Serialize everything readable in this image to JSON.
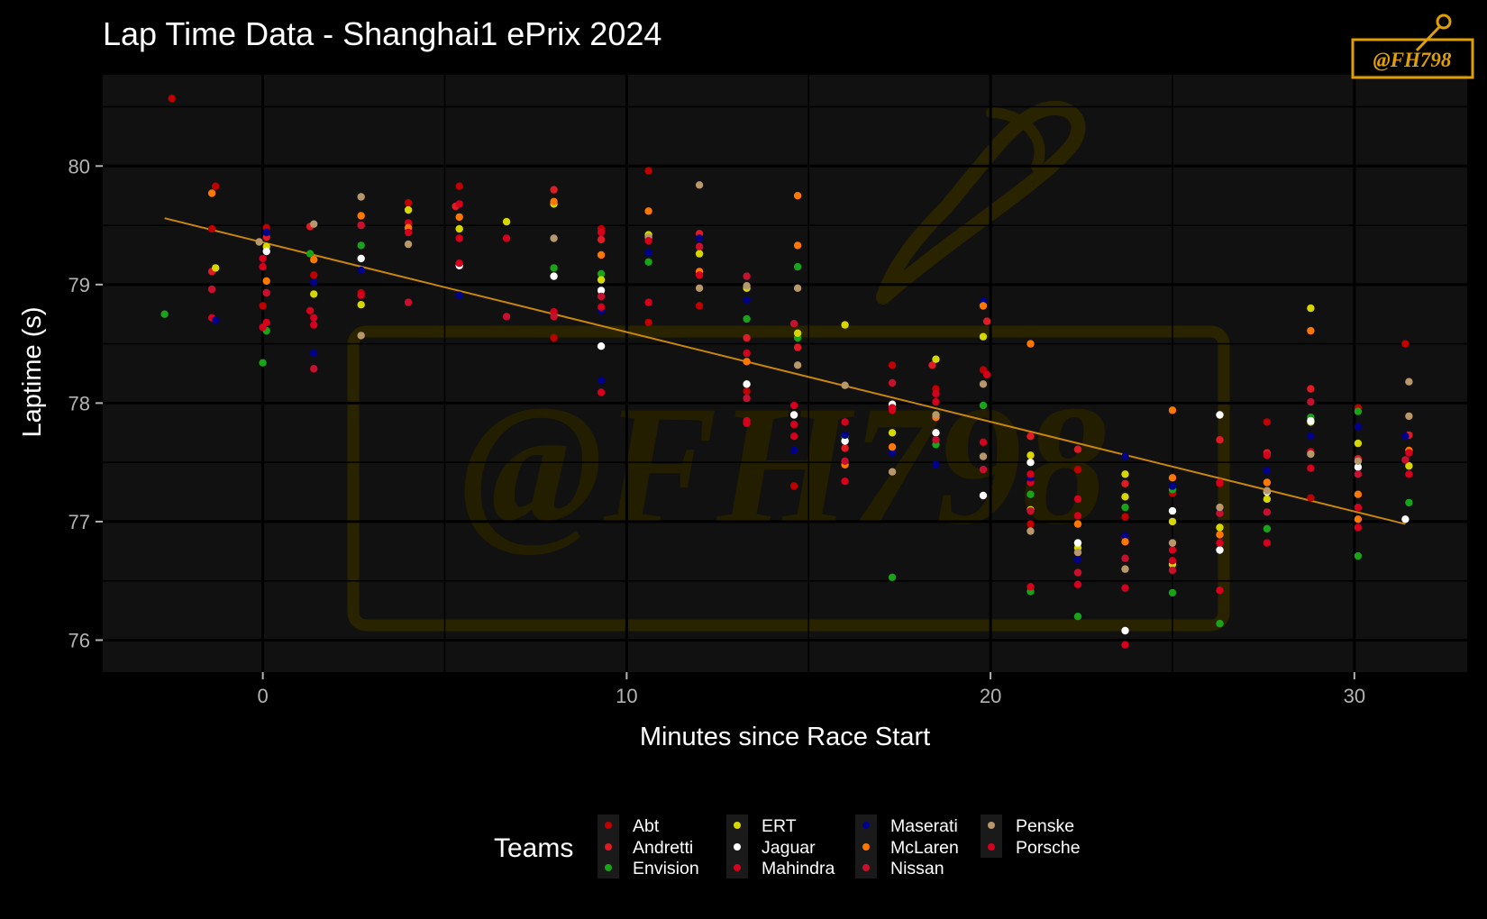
{
  "title": "Lap Time Data - Shanghai1 ePrix 2024",
  "watermark_text": "@FH798",
  "logo_text": "@FH798",
  "chart_data": {
    "type": "scatter",
    "title": "Lap Time Data - Shanghai1 ePrix 2024",
    "xlabel": "Minutes since Race Start",
    "ylabel": "Laptime (s)",
    "xlim": [
      -4.4,
      33.1
    ],
    "ylim": [
      75.73,
      80.77
    ],
    "xticks": [
      0,
      10,
      20,
      30
    ],
    "yticks": [
      76,
      77,
      78,
      79,
      80
    ],
    "grid": true,
    "legend_title": "Teams",
    "legend_position": "bottom",
    "trend_line": {
      "x": [
        -2.7,
        31.4
      ],
      "y": [
        79.56,
        76.98
      ],
      "color": "#c8860a"
    },
    "colors": {
      "Abt": "#c00000",
      "Andretti": "#e01b24",
      "Envision": "#19a319",
      "ERT": "#d7d700",
      "Jaguar": "#ffffff",
      "Mahindra": "#d6001c",
      "Maserati": "#00008b",
      "McLaren": "#ff7700",
      "Nissan": "#c8102e",
      "Penske": "#b8976a",
      "Porsche": "#d5001c"
    },
    "series": [
      {
        "name": "Abt",
        "points": [
          [
            -2.5,
            80.57
          ],
          [
            -1.4,
            79.47
          ],
          [
            -1.3,
            79.83
          ],
          [
            0.0,
            78.82
          ],
          [
            0.1,
            79.48
          ],
          [
            1.4,
            79.08
          ],
          [
            2.7,
            78.93
          ],
          [
            4.0,
            79.69
          ],
          [
            5.4,
            79.83
          ],
          [
            8.0,
            78.55
          ],
          [
            9.3,
            79.47
          ],
          [
            10.6,
            79.96
          ],
          [
            10.6,
            78.68
          ],
          [
            12.0,
            78.82
          ],
          [
            13.3,
            78.1
          ],
          [
            14.6,
            77.3
          ],
          [
            17.3,
            78.32
          ],
          [
            18.5,
            78.12
          ],
          [
            19.8,
            78.28
          ],
          [
            21.1,
            76.98
          ],
          [
            22.4,
            77.44
          ],
          [
            23.7,
            77.04
          ],
          [
            25.0,
            77.24
          ],
          [
            26.3,
            77.32
          ],
          [
            27.6,
            77.84
          ],
          [
            28.8,
            77.2
          ],
          [
            30.1,
            77.96
          ],
          [
            31.4,
            78.5
          ]
        ]
      },
      {
        "name": "Andretti",
        "points": [
          [
            -1.4,
            79.11
          ],
          [
            0.1,
            79.4
          ],
          [
            1.3,
            79.49
          ],
          [
            2.7,
            79.5
          ],
          [
            5.3,
            79.66
          ],
          [
            8.0,
            79.8
          ],
          [
            9.3,
            79.38
          ],
          [
            12.0,
            79.43
          ],
          [
            13.3,
            78.55
          ],
          [
            14.7,
            78.47
          ],
          [
            16.0,
            77.62
          ],
          [
            18.4,
            78.32
          ],
          [
            19.9,
            78.69
          ],
          [
            21.1,
            77.72
          ],
          [
            22.4,
            77.61
          ],
          [
            23.7,
            77.32
          ],
          [
            25.0,
            77.0
          ],
          [
            26.3,
            77.69
          ],
          [
            27.6,
            77.58
          ],
          [
            28.8,
            78.12
          ],
          [
            30.1,
            77.53
          ],
          [
            31.5,
            77.73
          ]
        ]
      },
      {
        "name": "Envision",
        "points": [
          [
            -2.7,
            78.75
          ],
          [
            0.0,
            78.34
          ],
          [
            0.1,
            78.61
          ],
          [
            1.3,
            79.26
          ],
          [
            2.7,
            79.33
          ],
          [
            8.0,
            79.14
          ],
          [
            9.3,
            79.09
          ],
          [
            10.6,
            79.19
          ],
          [
            13.3,
            78.71
          ],
          [
            14.7,
            79.15
          ],
          [
            14.7,
            78.55
          ],
          [
            16.0,
            77.72
          ],
          [
            17.3,
            76.53
          ],
          [
            18.5,
            77.65
          ],
          [
            19.8,
            77.98
          ],
          [
            21.1,
            77.23
          ],
          [
            21.1,
            76.41
          ],
          [
            22.4,
            76.2
          ],
          [
            23.7,
            77.12
          ],
          [
            25.0,
            77.27
          ],
          [
            25.0,
            76.4
          ],
          [
            26.3,
            76.14
          ],
          [
            27.6,
            76.94
          ],
          [
            28.8,
            77.88
          ],
          [
            30.1,
            77.93
          ],
          [
            30.1,
            76.71
          ],
          [
            31.5,
            77.16
          ]
        ]
      },
      {
        "name": "ERT",
        "points": [
          [
            -1.3,
            79.14
          ],
          [
            0.1,
            79.32
          ],
          [
            1.4,
            78.92
          ],
          [
            2.7,
            78.83
          ],
          [
            4.0,
            79.63
          ],
          [
            5.4,
            79.47
          ],
          [
            6.7,
            79.53
          ],
          [
            8.0,
            79.68
          ],
          [
            9.3,
            79.04
          ],
          [
            10.6,
            79.42
          ],
          [
            12.0,
            79.26
          ],
          [
            13.3,
            78.97
          ],
          [
            14.7,
            78.59
          ],
          [
            16.0,
            78.66
          ],
          [
            17.3,
            77.75
          ],
          [
            18.5,
            78.37
          ],
          [
            19.8,
            78.56
          ],
          [
            21.1,
            77.56
          ],
          [
            21.1,
            77.1
          ],
          [
            22.4,
            76.78
          ],
          [
            23.7,
            77.4
          ],
          [
            23.7,
            77.21
          ],
          [
            25.0,
            77.0
          ],
          [
            25.0,
            76.64
          ],
          [
            26.3,
            76.95
          ],
          [
            27.6,
            77.19
          ],
          [
            28.8,
            78.8
          ],
          [
            28.8,
            77.84
          ],
          [
            30.1,
            77.66
          ],
          [
            31.5,
            77.47
          ]
        ]
      },
      {
        "name": "Jaguar",
        "points": [
          [
            0.1,
            79.28
          ],
          [
            2.7,
            79.22
          ],
          [
            5.4,
            79.16
          ],
          [
            8.0,
            79.07
          ],
          [
            9.3,
            78.48
          ],
          [
            9.3,
            78.95
          ],
          [
            13.3,
            78.16
          ],
          [
            14.6,
            77.9
          ],
          [
            16.0,
            77.68
          ],
          [
            17.3,
            77.99
          ],
          [
            18.5,
            77.75
          ],
          [
            19.8,
            77.22
          ],
          [
            21.1,
            77.5
          ],
          [
            22.4,
            76.82
          ],
          [
            23.7,
            76.08
          ],
          [
            25.0,
            77.09
          ],
          [
            26.3,
            77.9
          ],
          [
            26.3,
            76.76
          ],
          [
            27.6,
            77.25
          ],
          [
            28.8,
            77.85
          ],
          [
            30.1,
            77.46
          ],
          [
            31.4,
            77.02
          ]
        ]
      },
      {
        "name": "Mahindra",
        "points": [
          [
            -1.4,
            78.72
          ],
          [
            0.1,
            78.68
          ],
          [
            0.0,
            79.15
          ],
          [
            1.3,
            78.78
          ],
          [
            1.4,
            78.66
          ],
          [
            2.7,
            78.91
          ],
          [
            4.0,
            79.52
          ],
          [
            5.4,
            79.39
          ],
          [
            6.7,
            79.39
          ],
          [
            8.0,
            78.77
          ],
          [
            9.3,
            78.09
          ],
          [
            10.6,
            78.85
          ],
          [
            12.0,
            79.11
          ],
          [
            13.3,
            77.85
          ],
          [
            14.6,
            77.98
          ],
          [
            14.6,
            77.72
          ],
          [
            16.0,
            77.34
          ],
          [
            17.3,
            77.96
          ],
          [
            18.5,
            78.08
          ],
          [
            19.9,
            78.24
          ],
          [
            21.1,
            77.33
          ],
          [
            21.1,
            76.45
          ],
          [
            22.4,
            77.19
          ],
          [
            22.4,
            76.47
          ],
          [
            23.7,
            76.44
          ],
          [
            23.7,
            76.87
          ],
          [
            25.0,
            76.76
          ],
          [
            26.3,
            76.42
          ],
          [
            26.3,
            76.82
          ],
          [
            27.6,
            76.82
          ],
          [
            28.8,
            77.59
          ],
          [
            30.1,
            77.12
          ],
          [
            31.5,
            77.4
          ]
        ]
      },
      {
        "name": "Maserati",
        "points": [
          [
            -1.3,
            78.7
          ],
          [
            0.1,
            79.44
          ],
          [
            1.4,
            79.02
          ],
          [
            1.4,
            78.42
          ],
          [
            2.7,
            79.12
          ],
          [
            5.4,
            78.91
          ],
          [
            9.3,
            78.19
          ],
          [
            9.3,
            78.78
          ],
          [
            10.6,
            79.27
          ],
          [
            12.0,
            79.39
          ],
          [
            13.3,
            78.87
          ],
          [
            14.6,
            77.6
          ],
          [
            16.0,
            77.73
          ],
          [
            17.3,
            77.58
          ],
          [
            18.5,
            77.48
          ],
          [
            19.8,
            78.86
          ],
          [
            21.1,
            77.37
          ],
          [
            22.4,
            76.68
          ],
          [
            23.7,
            77.55
          ],
          [
            23.7,
            76.88
          ],
          [
            25.0,
            77.3
          ],
          [
            26.3,
            77.1
          ],
          [
            27.6,
            77.43
          ],
          [
            28.8,
            77.72
          ],
          [
            30.1,
            77.8
          ],
          [
            31.4,
            77.72
          ]
        ]
      },
      {
        "name": "McLaren",
        "points": [
          [
            -1.4,
            79.77
          ],
          [
            0.1,
            79.03
          ],
          [
            1.4,
            79.21
          ],
          [
            2.7,
            79.58
          ],
          [
            4.0,
            79.48
          ],
          [
            5.4,
            79.57
          ],
          [
            8.0,
            79.7
          ],
          [
            9.3,
            79.25
          ],
          [
            10.6,
            79.62
          ],
          [
            12.0,
            79.11
          ],
          [
            13.3,
            78.35
          ],
          [
            14.7,
            79.75
          ],
          [
            14.7,
            79.33
          ],
          [
            16.0,
            77.48
          ],
          [
            17.3,
            77.63
          ],
          [
            18.5,
            77.88
          ],
          [
            19.8,
            78.82
          ],
          [
            21.1,
            78.5
          ],
          [
            22.4,
            76.98
          ],
          [
            23.7,
            76.83
          ],
          [
            25.0,
            77.94
          ],
          [
            25.0,
            77.37
          ],
          [
            26.3,
            76.89
          ],
          [
            27.6,
            77.33
          ],
          [
            28.8,
            78.61
          ],
          [
            30.1,
            77.23
          ],
          [
            30.1,
            77.02
          ],
          [
            31.5,
            77.6
          ]
        ]
      },
      {
        "name": "Nissan",
        "points": [
          [
            -1.4,
            78.96
          ],
          [
            0.1,
            78.93
          ],
          [
            1.4,
            78.29
          ],
          [
            2.7,
            79.5
          ],
          [
            4.0,
            78.85
          ],
          [
            6.7,
            78.73
          ],
          [
            8.0,
            78.73
          ],
          [
            9.3,
            78.9
          ],
          [
            12.0,
            79.32
          ],
          [
            13.3,
            79.07
          ],
          [
            13.3,
            78.04
          ],
          [
            14.6,
            78.67
          ],
          [
            16.0,
            77.51
          ],
          [
            17.3,
            78.17
          ],
          [
            18.5,
            77.69
          ],
          [
            19.8,
            77.44
          ],
          [
            21.1,
            77.09
          ],
          [
            22.4,
            76.57
          ],
          [
            23.7,
            76.69
          ],
          [
            25.0,
            76.59
          ],
          [
            26.3,
            77.07
          ],
          [
            27.6,
            77.08
          ],
          [
            28.8,
            78.01
          ],
          [
            30.1,
            77.4
          ],
          [
            31.4,
            77.52
          ]
        ]
      },
      {
        "name": "Penske",
        "points": [
          [
            -0.1,
            79.36
          ],
          [
            1.4,
            79.51
          ],
          [
            2.7,
            79.74
          ],
          [
            2.7,
            78.57
          ],
          [
            4.0,
            79.34
          ],
          [
            8.0,
            79.39
          ],
          [
            10.6,
            79.4
          ],
          [
            12.0,
            79.84
          ],
          [
            12.0,
            78.97
          ],
          [
            13.3,
            78.99
          ],
          [
            14.7,
            78.97
          ],
          [
            14.7,
            78.32
          ],
          [
            16.0,
            78.15
          ],
          [
            17.3,
            77.42
          ],
          [
            18.5,
            77.9
          ],
          [
            19.8,
            78.16
          ],
          [
            19.8,
            77.55
          ],
          [
            21.1,
            76.92
          ],
          [
            22.4,
            76.74
          ],
          [
            23.7,
            76.6
          ],
          [
            25.0,
            76.82
          ],
          [
            26.3,
            77.12
          ],
          [
            27.6,
            77.26
          ],
          [
            28.8,
            77.57
          ],
          [
            30.1,
            77.51
          ],
          [
            31.5,
            77.89
          ],
          [
            31.5,
            78.18
          ]
        ]
      },
      {
        "name": "Porsche",
        "points": [
          [
            0.0,
            78.64
          ],
          [
            0.0,
            79.22
          ],
          [
            1.4,
            78.72
          ],
          [
            4.0,
            79.44
          ],
          [
            5.4,
            79.68
          ],
          [
            5.4,
            79.18
          ],
          [
            9.3,
            79.44
          ],
          [
            9.3,
            78.81
          ],
          [
            10.6,
            79.37
          ],
          [
            12.0,
            79.08
          ],
          [
            13.3,
            78.42
          ],
          [
            13.3,
            77.83
          ],
          [
            14.6,
            77.82
          ],
          [
            16.0,
            77.84
          ],
          [
            17.3,
            77.94
          ],
          [
            18.5,
            78.01
          ],
          [
            19.8,
            77.67
          ],
          [
            21.1,
            77.4
          ],
          [
            22.4,
            77.05
          ],
          [
            23.7,
            75.96
          ],
          [
            25.0,
            76.67
          ],
          [
            26.3,
            77.33
          ],
          [
            27.6,
            77.56
          ],
          [
            28.8,
            77.45
          ],
          [
            30.1,
            76.95
          ],
          [
            31.5,
            77.58
          ]
        ]
      }
    ]
  }
}
